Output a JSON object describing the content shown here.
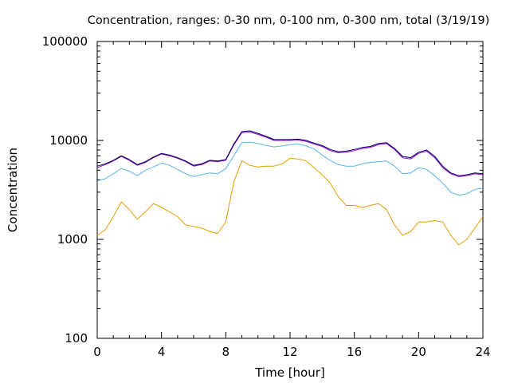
{
  "chart_data": {
    "type": "line",
    "title": "Concentration, ranges: 0-30 nm, 0-100 nm, 0-300 nm, total (3/19/19)",
    "xlabel": "Time [hour]",
    "ylabel": "Concentration",
    "xlim": [
      0,
      24
    ],
    "ylim": [
      100,
      100000
    ],
    "yscale": "log",
    "xticks": [
      0,
      4,
      8,
      12,
      16,
      20,
      24
    ],
    "yticks": [
      100,
      1000,
      10000,
      100000
    ],
    "ytick_labels": [
      "100",
      "1000",
      "10000",
      "100000"
    ],
    "grid": false,
    "legend": "none",
    "colors": {
      "range_0_30": "#e69f00",
      "range_0_100": "#56b4e9",
      "range_0_300": "#9400d3",
      "total": "#00005a"
    },
    "x": [
      0,
      0.5,
      1.0,
      1.5,
      2.0,
      2.5,
      3.0,
      3.5,
      4.0,
      4.5,
      5.0,
      5.5,
      6.0,
      6.5,
      7.0,
      7.5,
      8.0,
      8.5,
      9.0,
      9.5,
      10.0,
      10.5,
      11.0,
      11.5,
      12.0,
      12.5,
      13.0,
      13.5,
      14.0,
      14.5,
      15.0,
      15.5,
      16.0,
      16.5,
      17.0,
      17.5,
      18.0,
      18.5,
      19.0,
      19.5,
      20.0,
      20.5,
      21.0,
      21.5,
      22.0,
      22.5,
      23.0,
      23.5,
      24.0
    ],
    "series": [
      {
        "key": "range_0_30",
        "values": [
          1100,
          1250,
          1700,
          2400,
          2000,
          1600,
          1900,
          2300,
          2100,
          1900,
          1700,
          1400,
          1350,
          1300,
          1200,
          1150,
          1500,
          3800,
          6200,
          5600,
          5400,
          5500,
          5500,
          5800,
          6600,
          6500,
          6200,
          5300,
          4500,
          3700,
          2700,
          2200,
          2200,
          2100,
          2200,
          2300,
          2000,
          1400,
          1100,
          1200,
          1500,
          1500,
          1550,
          1500,
          1100,
          880,
          1000,
          1300,
          1700
        ]
      },
      {
        "key": "range_0_100",
        "values": [
          3900,
          4100,
          4600,
          5200,
          4900,
          4400,
          5000,
          5400,
          5900,
          5600,
          5100,
          4600,
          4300,
          4500,
          4700,
          4600,
          5200,
          7000,
          9500,
          9600,
          9300,
          8900,
          8600,
          8800,
          9100,
          9200,
          8800,
          8200,
          7100,
          6300,
          5700,
          5500,
          5500,
          5800,
          6000,
          6100,
          6200,
          5500,
          4600,
          4700,
          5300,
          5100,
          4400,
          3700,
          3000,
          2800,
          2900,
          3200,
          3300
        ]
      },
      {
        "key": "range_0_300",
        "values": [
          5300,
          5700,
          6200,
          6900,
          6300,
          5600,
          6000,
          6700,
          7300,
          7000,
          6600,
          6100,
          5500,
          5700,
          6200,
          6100,
          6300,
          9000,
          12000,
          12200,
          11500,
          10800,
          10000,
          10000,
          10000,
          10100,
          9800,
          9200,
          8700,
          7900,
          7500,
          7600,
          7900,
          8300,
          8500,
          9100,
          9300,
          8100,
          6700,
          6500,
          7400,
          7800,
          6700,
          5300,
          4600,
          4300,
          4400,
          4600,
          4500
        ]
      },
      {
        "key": "total",
        "values": [
          5500,
          5800,
          6300,
          7000,
          6400,
          5700,
          6100,
          6800,
          7400,
          7100,
          6700,
          6200,
          5600,
          5800,
          6300,
          6200,
          6400,
          9200,
          12300,
          12500,
          11800,
          11000,
          10200,
          10200,
          10200,
          10300,
          10000,
          9400,
          8900,
          8100,
          7700,
          7800,
          8100,
          8500,
          8700,
          9300,
          9500,
          8300,
          6900,
          6700,
          7600,
          8000,
          6900,
          5500,
          4700,
          4400,
          4500,
          4700,
          4600
        ]
      }
    ]
  }
}
